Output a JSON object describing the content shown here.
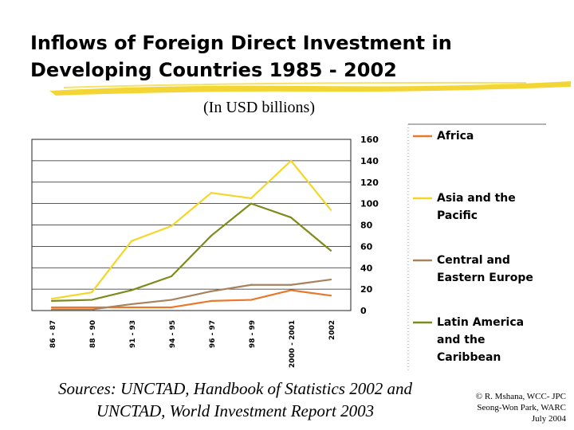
{
  "slide": {
    "title_line1": "Inflows of Foreign Direct Investment in",
    "title_line2": "Developing Countries 1985 - 2002",
    "subtitle": "(In USD billions)",
    "sources_line1": "Sources: UNCTAD, Handbook of Statistics 2002 and",
    "sources_line2": "UNCTAD, World Investment Report 2003",
    "credit_line1": "© R. Mshana, WCC- JPC",
    "credit_line2": "Seong-Won Park, WARC",
    "credit_line3": "July 2004"
  },
  "colors": {
    "brush": "#f2d42a",
    "africa": "#e8782a",
    "asia_pacific": "#f5d628",
    "central_eastern_europe": "#a8825e",
    "latin_america": "#7e8a1c"
  },
  "chart_data": {
    "type": "line",
    "title": "",
    "xlabel": "",
    "ylabel": "",
    "categories": [
      "86 - 87",
      "88 - 90",
      "91 - 93",
      "94 - 95",
      "96 - 97",
      "98 - 99",
      "2000 - 2001",
      "2002"
    ],
    "ylim": [
      0,
      160
    ],
    "yticks": [
      0,
      20,
      40,
      60,
      80,
      100,
      120,
      140,
      160
    ],
    "grid": true,
    "legend_position": "right",
    "series": [
      {
        "name": "Africa",
        "color": "#e8782a",
        "values": [
          3,
          3,
          3,
          3,
          9,
          10,
          19,
          14
        ]
      },
      {
        "name": "Asia and the Pacific",
        "color": "#f5d628",
        "values": [
          11,
          17,
          65,
          79,
          110,
          105,
          140,
          94
        ]
      },
      {
        "name": "Central and Eastern Europe",
        "color": "#a8825e",
        "values": [
          1,
          1,
          6,
          10,
          18,
          24,
          24,
          29
        ]
      },
      {
        "name": "Latin America and the Caribbean",
        "color": "#7e8a1c",
        "values": [
          9,
          10,
          19,
          32,
          70,
          100,
          87,
          56
        ]
      }
    ],
    "legend_lines": [
      [
        "Africa"
      ],
      [
        "Asia and the",
        "Pacific"
      ],
      [
        "Central and",
        "Eastern Europe"
      ],
      [
        "Latin America",
        "and the",
        "Caribbean"
      ]
    ]
  }
}
